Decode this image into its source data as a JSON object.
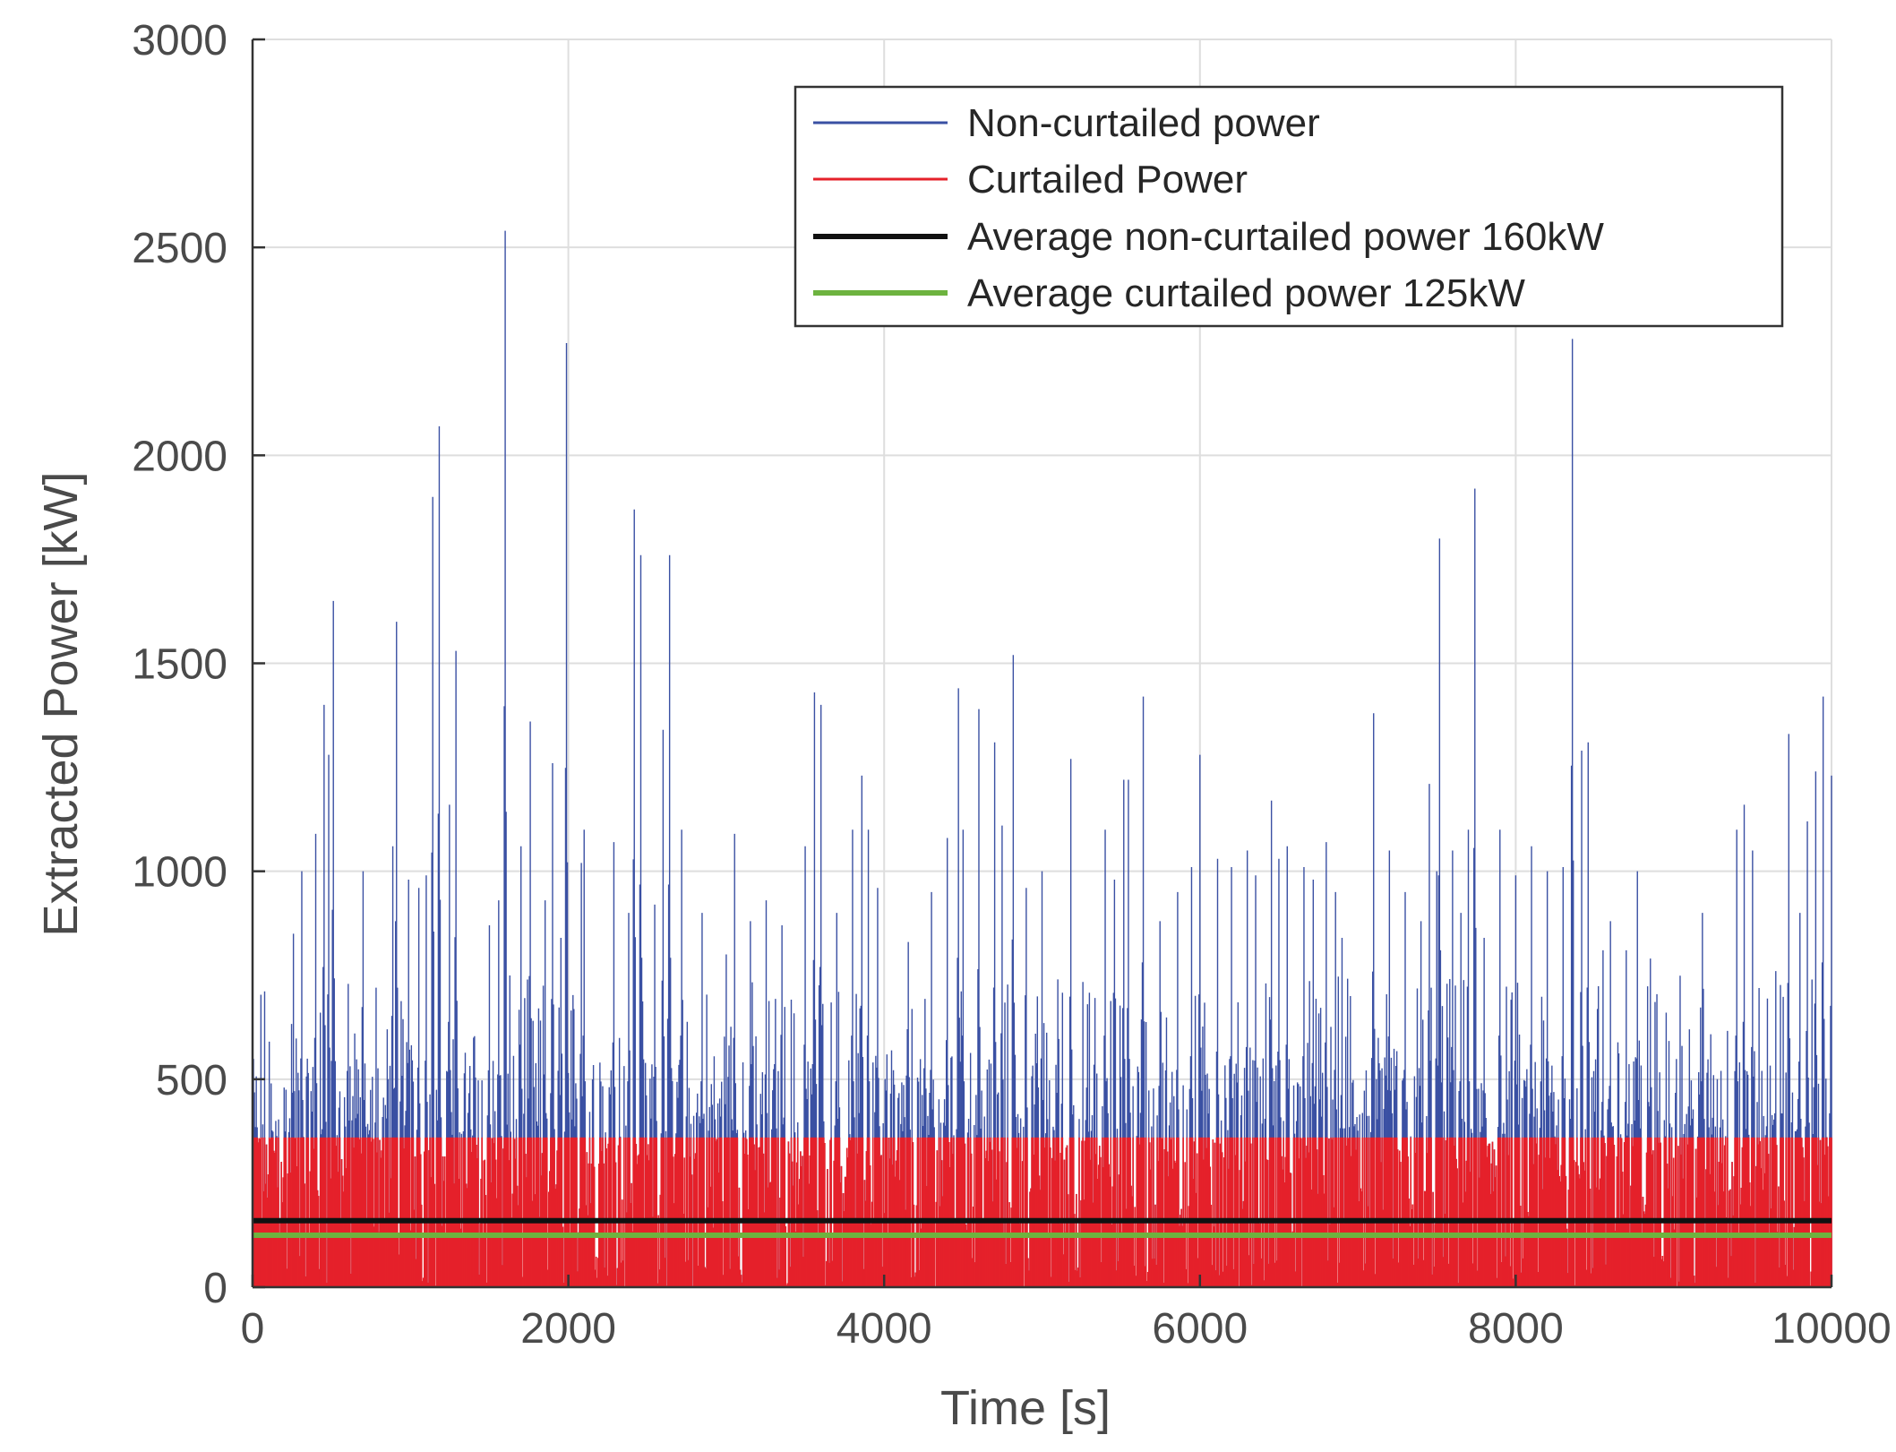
{
  "chart_data": {
    "type": "line",
    "title": "",
    "xlabel": "Time [s]",
    "ylabel": "Extracted Power [kW]",
    "xlim": [
      0,
      10000
    ],
    "ylim": [
      0,
      3000
    ],
    "xticks": [
      0,
      2000,
      4000,
      6000,
      8000,
      10000
    ],
    "xtick_labels": [
      "0",
      "2000",
      "4000",
      "6000",
      "8000",
      "10000"
    ],
    "yticks": [
      0,
      500,
      1000,
      1500,
      2000,
      2500,
      3000
    ],
    "ytick_labels": [
      "0",
      "500",
      "1000",
      "1500",
      "2000",
      "2500",
      "3000"
    ],
    "grid": true,
    "legend_position": "top-right",
    "curtail_cap": 360,
    "series": [
      {
        "name": "Non-curtailed power",
        "color": "#3a50a3",
        "kind": "signal",
        "peaks": [
          {
            "x": 50,
            "y": 360
          },
          {
            "x": 120,
            "y": 490
          },
          {
            "x": 200,
            "y": 480
          },
          {
            "x": 260,
            "y": 850
          },
          {
            "x": 310,
            "y": 1000
          },
          {
            "x": 400,
            "y": 1090
          },
          {
            "x": 450,
            "y": 1400
          },
          {
            "x": 480,
            "y": 1280
          },
          {
            "x": 510,
            "y": 1650
          },
          {
            "x": 600,
            "y": 520
          },
          {
            "x": 650,
            "y": 610
          },
          {
            "x": 700,
            "y": 1000
          },
          {
            "x": 780,
            "y": 720
          },
          {
            "x": 850,
            "y": 620
          },
          {
            "x": 890,
            "y": 1060
          },
          {
            "x": 910,
            "y": 1600
          },
          {
            "x": 990,
            "y": 980
          },
          {
            "x": 1050,
            "y": 960
          },
          {
            "x": 1100,
            "y": 990
          },
          {
            "x": 1140,
            "y": 1900
          },
          {
            "x": 1180,
            "y": 2070
          },
          {
            "x": 1250,
            "y": 1160
          },
          {
            "x": 1290,
            "y": 1530
          },
          {
            "x": 1400,
            "y": 600
          },
          {
            "x": 1500,
            "y": 870
          },
          {
            "x": 1560,
            "y": 930
          },
          {
            "x": 1600,
            "y": 2540
          },
          {
            "x": 1700,
            "y": 1060
          },
          {
            "x": 1760,
            "y": 1360
          },
          {
            "x": 1850,
            "y": 930
          },
          {
            "x": 1900,
            "y": 1260
          },
          {
            "x": 1950,
            "y": 840
          },
          {
            "x": 1990,
            "y": 2270
          },
          {
            "x": 2080,
            "y": 1020
          },
          {
            "x": 2100,
            "y": 1100
          },
          {
            "x": 2200,
            "y": 540
          },
          {
            "x": 2290,
            "y": 1070
          },
          {
            "x": 2380,
            "y": 900
          },
          {
            "x": 2420,
            "y": 1870
          },
          {
            "x": 2460,
            "y": 1760
          },
          {
            "x": 2550,
            "y": 920
          },
          {
            "x": 2600,
            "y": 1340
          },
          {
            "x": 2640,
            "y": 1760
          },
          {
            "x": 2720,
            "y": 1100
          },
          {
            "x": 2850,
            "y": 900
          },
          {
            "x": 3000,
            "y": 800
          },
          {
            "x": 3050,
            "y": 1090
          },
          {
            "x": 3150,
            "y": 880
          },
          {
            "x": 3250,
            "y": 930
          },
          {
            "x": 3350,
            "y": 870
          },
          {
            "x": 3500,
            "y": 1060
          },
          {
            "x": 3560,
            "y": 1430
          },
          {
            "x": 3600,
            "y": 1400
          },
          {
            "x": 3700,
            "y": 900
          },
          {
            "x": 3800,
            "y": 1100
          },
          {
            "x": 3860,
            "y": 1230
          },
          {
            "x": 3900,
            "y": 1100
          },
          {
            "x": 3960,
            "y": 960
          },
          {
            "x": 4150,
            "y": 830
          },
          {
            "x": 4300,
            "y": 950
          },
          {
            "x": 4400,
            "y": 1080
          },
          {
            "x": 4470,
            "y": 1440
          },
          {
            "x": 4500,
            "y": 1100
          },
          {
            "x": 4600,
            "y": 1390
          },
          {
            "x": 4700,
            "y": 1310
          },
          {
            "x": 4750,
            "y": 1110
          },
          {
            "x": 4820,
            "y": 1520
          },
          {
            "x": 4900,
            "y": 960
          },
          {
            "x": 5000,
            "y": 1000
          },
          {
            "x": 5100,
            "y": 740
          },
          {
            "x": 5180,
            "y": 1270
          },
          {
            "x": 5300,
            "y": 680
          },
          {
            "x": 5400,
            "y": 1100
          },
          {
            "x": 5460,
            "y": 980
          },
          {
            "x": 5520,
            "y": 1220
          },
          {
            "x": 5550,
            "y": 1220
          },
          {
            "x": 5640,
            "y": 1420
          },
          {
            "x": 5750,
            "y": 880
          },
          {
            "x": 5860,
            "y": 950
          },
          {
            "x": 5950,
            "y": 1010
          },
          {
            "x": 6000,
            "y": 1280
          },
          {
            "x": 6110,
            "y": 1030
          },
          {
            "x": 6200,
            "y": 1010
          },
          {
            "x": 6300,
            "y": 1050
          },
          {
            "x": 6350,
            "y": 990
          },
          {
            "x": 6450,
            "y": 1170
          },
          {
            "x": 6500,
            "y": 1030
          },
          {
            "x": 6550,
            "y": 1060
          },
          {
            "x": 6660,
            "y": 1010
          },
          {
            "x": 6720,
            "y": 980
          },
          {
            "x": 6800,
            "y": 1070
          },
          {
            "x": 6860,
            "y": 950
          },
          {
            "x": 6900,
            "y": 840
          },
          {
            "x": 6950,
            "y": 700
          },
          {
            "x": 7100,
            "y": 1380
          },
          {
            "x": 7200,
            "y": 1050
          },
          {
            "x": 7300,
            "y": 950
          },
          {
            "x": 7400,
            "y": 880
          },
          {
            "x": 7450,
            "y": 1210
          },
          {
            "x": 7500,
            "y": 1000
          },
          {
            "x": 7520,
            "y": 1800
          },
          {
            "x": 7600,
            "y": 1050
          },
          {
            "x": 7650,
            "y": 900
          },
          {
            "x": 7700,
            "y": 1100
          },
          {
            "x": 7740,
            "y": 1920
          },
          {
            "x": 7800,
            "y": 840
          },
          {
            "x": 7900,
            "y": 1100
          },
          {
            "x": 8000,
            "y": 990
          },
          {
            "x": 8100,
            "y": 1060
          },
          {
            "x": 8200,
            "y": 1000
          },
          {
            "x": 8300,
            "y": 1010
          },
          {
            "x": 8360,
            "y": 2280
          },
          {
            "x": 8420,
            "y": 1290
          },
          {
            "x": 8460,
            "y": 1310
          },
          {
            "x": 8550,
            "y": 810
          },
          {
            "x": 8600,
            "y": 880
          },
          {
            "x": 8700,
            "y": 810
          },
          {
            "x": 8770,
            "y": 1000
          },
          {
            "x": 8850,
            "y": 790
          },
          {
            "x": 8950,
            "y": 660
          },
          {
            "x": 9050,
            "y": 580
          },
          {
            "x": 9100,
            "y": 620
          },
          {
            "x": 9180,
            "y": 900
          },
          {
            "x": 9250,
            "y": 510
          },
          {
            "x": 9300,
            "y": 520
          },
          {
            "x": 9400,
            "y": 1100
          },
          {
            "x": 9450,
            "y": 1160
          },
          {
            "x": 9500,
            "y": 1050
          },
          {
            "x": 9560,
            "y": 520
          },
          {
            "x": 9650,
            "y": 760
          },
          {
            "x": 9730,
            "y": 1330
          },
          {
            "x": 9800,
            "y": 900
          },
          {
            "x": 9850,
            "y": 1120
          },
          {
            "x": 9900,
            "y": 1240
          },
          {
            "x": 9950,
            "y": 1420
          },
          {
            "x": 10000,
            "y": 1230
          },
          {
            "x": 10010,
            "y": 1110
          }
        ]
      },
      {
        "name": "Curtailed Power",
        "color": "#e5212a",
        "kind": "signal-capped",
        "cap": 360
      },
      {
        "name": "Average non-curtailed power 160kW",
        "color": "#111111",
        "kind": "constant",
        "value": 160
      },
      {
        "name": "Average curtailed power 125kW",
        "color": "#6db33f",
        "kind": "constant",
        "value": 125
      }
    ]
  }
}
